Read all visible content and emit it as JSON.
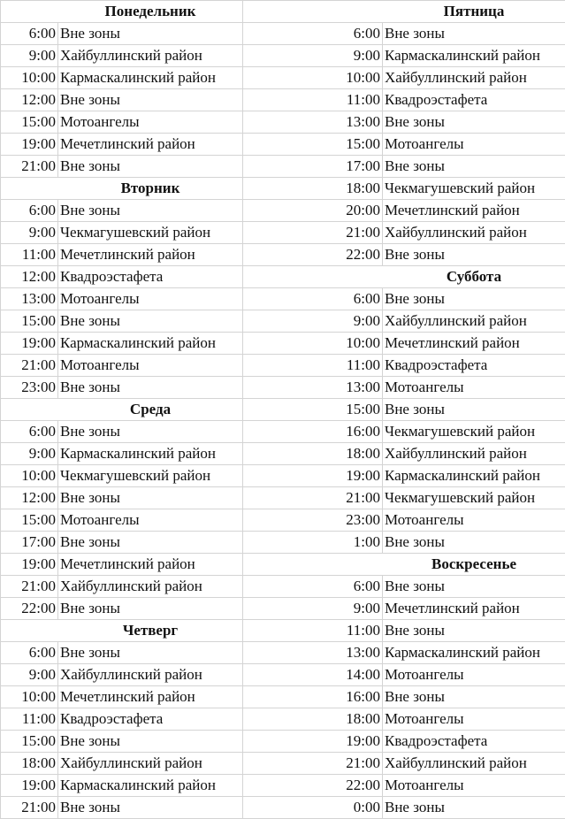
{
  "left": [
    {
      "day": "Понедельник"
    },
    {
      "time": "6:00",
      "name": "Вне зоны"
    },
    {
      "time": "9:00",
      "name": "Хайбуллинский район"
    },
    {
      "time": "10:00",
      "name": "Кармаскалинский район"
    },
    {
      "time": "12:00",
      "name": "Вне зоны"
    },
    {
      "time": "15:00",
      "name": "Мотоангелы"
    },
    {
      "time": "19:00",
      "name": "Мечетлинский район"
    },
    {
      "time": "21:00",
      "name": "Вне зоны"
    },
    {
      "day": "Вторник"
    },
    {
      "time": "6:00",
      "name": "Вне зоны"
    },
    {
      "time": "9:00",
      "name": "Чекмагушевский район"
    },
    {
      "time": "11:00",
      "name": "Мечетлинский район"
    },
    {
      "time": "12:00",
      "name": "Квадроэстафета"
    },
    {
      "time": "13:00",
      "name": "Мотоангелы"
    },
    {
      "time": "15:00",
      "name": "Вне зоны"
    },
    {
      "time": "19:00",
      "name": "Кармаскалинский район"
    },
    {
      "time": "21:00",
      "name": "Мотоангелы"
    },
    {
      "time": "23:00",
      "name": "Вне зоны"
    },
    {
      "day": "Среда"
    },
    {
      "time": "6:00",
      "name": "Вне зоны"
    },
    {
      "time": "9:00",
      "name": "Кармаскалинский район"
    },
    {
      "time": "10:00",
      "name": "Чекмагушевский район"
    },
    {
      "time": "12:00",
      "name": "Вне зоны"
    },
    {
      "time": "15:00",
      "name": "Мотоангелы"
    },
    {
      "time": "17:00",
      "name": "Вне зоны"
    },
    {
      "time": "19:00",
      "name": "Мечетлинский район"
    },
    {
      "time": "21:00",
      "name": "Хайбуллинский район"
    },
    {
      "time": "22:00",
      "name": "Вне зоны"
    },
    {
      "day": "Четверг"
    },
    {
      "time": "6:00",
      "name": "Вне зоны"
    },
    {
      "time": "9:00",
      "name": "Хайбуллинский район"
    },
    {
      "time": "10:00",
      "name": "Мечетлинский район"
    },
    {
      "time": "11:00",
      "name": "Квадроэстафета"
    },
    {
      "time": "15:00",
      "name": "Вне зоны"
    },
    {
      "time": "18:00",
      "name": "Хайбуллинский район"
    },
    {
      "time": "19:00",
      "name": "Кармаскалинский район"
    },
    {
      "time": "21:00",
      "name": "Вне зоны"
    }
  ],
  "right": [
    {
      "day": "Пятница"
    },
    {
      "time": "6:00",
      "name": "Вне зоны"
    },
    {
      "time": "9:00",
      "name": "Кармаскалинский район"
    },
    {
      "time": "10:00",
      "name": "Хайбуллинский район"
    },
    {
      "time": "11:00",
      "name": "Квадроэстафета"
    },
    {
      "time": "13:00",
      "name": "Вне зоны"
    },
    {
      "time": "15:00",
      "name": "Мотоангелы"
    },
    {
      "time": "17:00",
      "name": "Вне зоны"
    },
    {
      "time": "18:00",
      "name": "Чекмагушевский район"
    },
    {
      "time": "20:00",
      "name": "Мечетлинский район"
    },
    {
      "time": "21:00",
      "name": "Хайбуллинский район"
    },
    {
      "time": "22:00",
      "name": "Вне зоны"
    },
    {
      "day": "Суббота"
    },
    {
      "time": "6:00",
      "name": "Вне зоны"
    },
    {
      "time": "9:00",
      "name": "Хайбуллинский район"
    },
    {
      "time": "10:00",
      "name": "Мечетлинский район"
    },
    {
      "time": "11:00",
      "name": "Квадроэстафета"
    },
    {
      "time": "13:00",
      "name": "Мотоангелы"
    },
    {
      "time": "15:00",
      "name": "Вне зоны"
    },
    {
      "time": "16:00",
      "name": "Чекмагушевский район"
    },
    {
      "time": "18:00",
      "name": "Хайбуллинский район"
    },
    {
      "time": "19:00",
      "name": "Кармаскалинский район"
    },
    {
      "time": "21:00",
      "name": "Чекмагушевский район"
    },
    {
      "time": "23:00",
      "name": "Мотоангелы"
    },
    {
      "time": "1:00",
      "name": "Вне зоны"
    },
    {
      "day": "Воскресенье"
    },
    {
      "time": "6:00",
      "name": "Вне зоны"
    },
    {
      "time": "9:00",
      "name": "Мечетлинский район"
    },
    {
      "time": "11:00",
      "name": "Вне зоны"
    },
    {
      "time": "13:00",
      "name": "Кармаскалинский район"
    },
    {
      "time": "14:00",
      "name": "Мотоангелы"
    },
    {
      "time": "16:00",
      "name": "Вне зоны"
    },
    {
      "time": "18:00",
      "name": "Мотоангелы"
    },
    {
      "time": "19:00",
      "name": "Квадроэстафета"
    },
    {
      "time": "21:00",
      "name": "Хайбуллинский район"
    },
    {
      "time": "22:00",
      "name": "Мотоангелы"
    },
    {
      "time": "0:00",
      "name": "Вне зоны"
    }
  ]
}
